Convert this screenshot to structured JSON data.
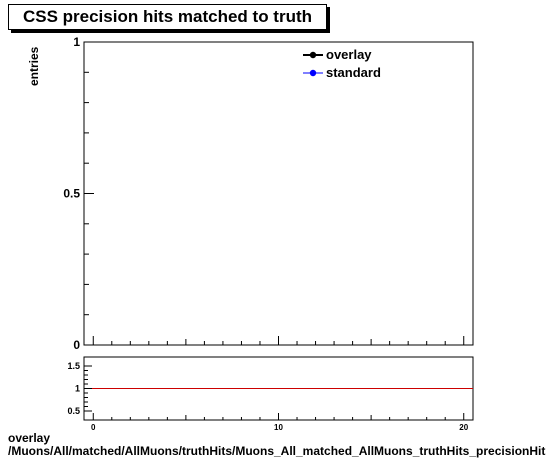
{
  "title": "CSS precision hits matched to truth",
  "footer": {
    "line1": "overlay",
    "line2": "/Muons/All/matched/AllMuons/truthHits/Muons_All_matched_AllMuons_truthHits_precisionHitsMatched"
  },
  "chart_data": [
    {
      "type": "line",
      "panel": "main",
      "title": "CSS precision hits matched to truth",
      "xlabel": "",
      "ylabel": "entries",
      "xlim": [
        -0.5,
        20.5
      ],
      "ylim": [
        0,
        1
      ],
      "y_tick_labels": [
        "0",
        "0.5",
        "1"
      ],
      "grid": false,
      "legend_position": "top-right",
      "series": [
        {
          "name": "overlay",
          "color": "#000000",
          "values": []
        },
        {
          "name": "standard",
          "color": "#0000ff",
          "values": []
        }
      ]
    },
    {
      "type": "line",
      "panel": "ratio",
      "xlim": [
        -0.5,
        20.5
      ],
      "ylim": [
        0.3,
        1.7
      ],
      "x_tick_labels": [
        "0",
        "10",
        "20"
      ],
      "y_tick_labels": [
        "0.5",
        "1",
        "1.5"
      ],
      "reference_line": {
        "y": 1,
        "color": "#cc0000"
      },
      "grid": false
    }
  ]
}
